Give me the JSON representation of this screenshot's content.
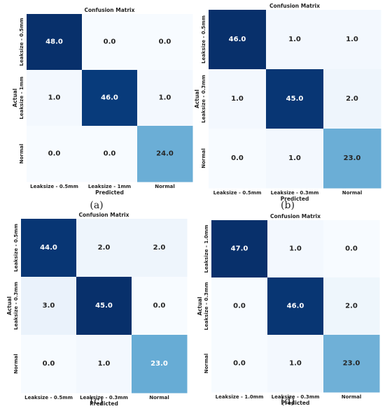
{
  "chart_data": [
    {
      "type": "heatmap",
      "panel": "(a)",
      "title": "Confusion Matrix",
      "xlabel": "Predicted",
      "ylabel": "Actual",
      "x_tick_labels": [
        "Leaksize - 0.5mm",
        "Leaksize - 1mm",
        "Normal"
      ],
      "y_tick_labels": [
        "Leaksize - 0.5mm",
        "Leaksize - 1mm",
        "Normal"
      ],
      "values": [
        [
          48.0,
          0.0,
          0.0
        ],
        [
          1.0,
          46.0,
          1.0
        ],
        [
          0.0,
          0.0,
          24.0
        ]
      ],
      "vmax": 48
    },
    {
      "type": "heatmap",
      "panel": "(b)",
      "title": "Confusion Matrix",
      "xlabel": "Predicted",
      "ylabel": "Actual",
      "x_tick_labels": [
        "Leaksize - 0.5mm",
        "Leaksize - 0.3mm",
        "Normal"
      ],
      "y_tick_labels": [
        "Leaksize - 0.5mm",
        "Leaksize - 0.3mm",
        "Normal"
      ],
      "values": [
        [
          46.0,
          1.0,
          1.0
        ],
        [
          1.0,
          45.0,
          2.0
        ],
        [
          0.0,
          1.0,
          23.0
        ]
      ],
      "vmax": 46
    },
    {
      "type": "heatmap",
      "panel": "(c)",
      "title": "Confusion Matrix",
      "xlabel": "Predicted",
      "ylabel": "Actual",
      "x_tick_labels": [
        "Leaksize - 0.5mm",
        "Leaksize - 0.3mm",
        "Normal"
      ],
      "y_tick_labels": [
        "Leaksize - 0.5mm",
        "Leaksize - 0.3mm",
        "Normal"
      ],
      "values": [
        [
          44.0,
          2.0,
          2.0
        ],
        [
          3.0,
          45.0,
          0.0
        ],
        [
          0.0,
          1.0,
          23.0
        ]
      ],
      "vmax": 45
    },
    {
      "type": "heatmap",
      "panel": "(d)",
      "title": "Confusion Matrix",
      "xlabel": "Predicted",
      "ylabel": "Actual",
      "x_tick_labels": [
        "Leaksize - 1.0mm",
        "Leaksize - 0.3mm",
        "Normal"
      ],
      "y_tick_labels": [
        "Leaksize - 1.0mm",
        "Leaksize - 0.3mm",
        "Normal"
      ],
      "values": [
        [
          47.0,
          1.0,
          0.0
        ],
        [
          0.0,
          46.0,
          2.0
        ],
        [
          0.0,
          1.0,
          23.0
        ]
      ],
      "vmax": 47
    }
  ],
  "captions": [
    "(a)",
    "(b)",
    "(c)",
    "(d)"
  ],
  "colors": {
    "low": "#f7fbff",
    "high": "#08306b",
    "dark_text": "#262626",
    "light_text": "#ffffff"
  }
}
